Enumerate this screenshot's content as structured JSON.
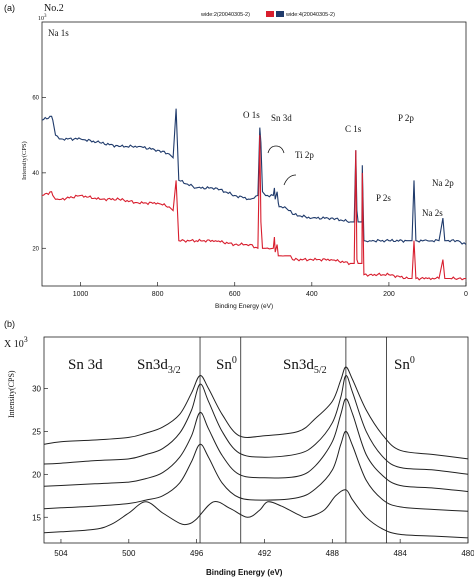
{
  "chart_data": [
    {
      "type": "line",
      "panel_label": "(a)",
      "sample": "No.2",
      "y_multiplier": "10",
      "y_multiplier_exp": "3",
      "legend": [
        {
          "name": "wide:2(20040305-2)",
          "color": "#d81e2e"
        },
        {
          "name": "wide:4(20040305-2)",
          "color": "#1f3a6b"
        }
      ],
      "xlabel": "Binding Energy (eV)",
      "ylabel": "Intensity(CPS)",
      "xlim": [
        1100,
        0
      ],
      "ylim": [
        10,
        80
      ],
      "xticks": [
        1000,
        800,
        600,
        400,
        200,
        0
      ],
      "yticks": [
        20,
        40,
        60
      ],
      "series": [
        {
          "color": "#1f3a6b",
          "x": [
            1100,
            1075,
            1072,
            1065,
            1050,
            1000,
            950,
            900,
            850,
            800,
            770,
            760,
            752,
            745,
            700,
            650,
            600,
            560,
            540,
            535,
            532,
            528,
            520,
            500,
            497,
            495,
            490,
            487,
            485,
            470,
            460,
            455,
            450,
            400,
            350,
            300,
            290,
            286,
            283,
            280,
            270,
            269,
            265,
            250,
            200,
            150,
            140,
            135,
            130,
            100,
            70,
            60,
            55,
            50,
            20,
            0
          ],
          "y": [
            54,
            55,
            54,
            50,
            49,
            49,
            48,
            47,
            47,
            46,
            45,
            44,
            57,
            38,
            36,
            36,
            34,
            33,
            34,
            52,
            48,
            35,
            34,
            34,
            36,
            33,
            35,
            32,
            31,
            31,
            30,
            30,
            29,
            28,
            28,
            27,
            27,
            46,
            30,
            27,
            27,
            42,
            22,
            22,
            22,
            22,
            22,
            38,
            22,
            22,
            22,
            28,
            22,
            22,
            22,
            21
          ]
        },
        {
          "color": "#d81e2e",
          "x": [
            1100,
            1075,
            1072,
            1065,
            1050,
            1000,
            950,
            900,
            850,
            800,
            770,
            760,
            752,
            745,
            700,
            650,
            600,
            560,
            540,
            535,
            532,
            528,
            520,
            500,
            497,
            495,
            490,
            487,
            485,
            470,
            460,
            455,
            450,
            400,
            350,
            300,
            290,
            286,
            283,
            280,
            270,
            269,
            265,
            250,
            200,
            150,
            140,
            135,
            130,
            100,
            70,
            60,
            55,
            50,
            20,
            0
          ],
          "y": [
            34,
            35,
            34,
            33,
            33,
            34,
            33,
            33,
            32,
            32,
            31,
            30,
            38,
            22,
            22,
            22,
            21,
            21,
            20,
            50,
            27,
            20,
            20,
            20,
            23,
            19,
            21,
            18,
            18,
            18,
            18,
            18,
            17,
            17,
            17,
            16,
            16,
            46,
            17,
            16,
            16,
            40,
            13,
            13,
            13,
            12,
            12,
            22,
            12,
            12,
            12,
            17,
            12,
            12,
            12,
            12
          ]
        }
      ],
      "annotations": [
        "Na 1s",
        "O 1s",
        "Sn 3d",
        "Ti 2p",
        "C 1s",
        "P 2p",
        "P 2s",
        "Na 2p",
        "Na 2s"
      ]
    },
    {
      "type": "line",
      "panel_label": "(b)",
      "y_multiplier": "X 10",
      "y_multiplier_exp": "3",
      "xlabel": "Binding Energy (eV)",
      "ylabel": "Intensity(CPS)",
      "xlim": [
        505,
        480
      ],
      "ylim": [
        12,
        36
      ],
      "xticks": [
        504,
        500,
        496,
        492,
        488,
        484,
        480
      ],
      "yticks": [
        15,
        20,
        25,
        30
      ],
      "reference_lines": [
        495.8,
        493.4,
        487.2,
        484.8
      ],
      "annotations": [
        "Sn 3d",
        "Sn3d",
        "3/2",
        "Sn",
        "0",
        "Sn3d",
        "5/2",
        "Sn",
        "0"
      ],
      "series": [
        {
          "x": [
            505,
            504,
            502,
            500,
            499,
            498,
            497,
            496.3,
            495.8,
            495.3,
            494.5,
            493.5,
            492,
            490,
            489,
            488,
            487.5,
            487.2,
            486.8,
            486,
            485,
            484,
            482,
            480
          ],
          "y": [
            23.5,
            23.8,
            24,
            24.3,
            24.8,
            25.5,
            27,
            29.5,
            31.5,
            30,
            27,
            24.5,
            24.5,
            25,
            26.5,
            28.5,
            31,
            32.5,
            31,
            27.5,
            24.5,
            22.8,
            22.3,
            21.8
          ]
        },
        {
          "x": [
            505,
            504,
            502,
            500,
            499,
            498,
            497,
            496.3,
            495.8,
            495.3,
            494.5,
            493.5,
            492,
            490,
            489,
            488,
            487.5,
            487.2,
            486.8,
            486,
            485,
            484,
            482,
            480
          ],
          "y": [
            21.2,
            21.3,
            21.6,
            21.8,
            22.3,
            23,
            24.8,
            27.5,
            30.5,
            28.5,
            25,
            22.5,
            22,
            22.4,
            23.5,
            26,
            29,
            31.5,
            29.5,
            25,
            22,
            20.8,
            20.5,
            20
          ],
          "peak_shift": 0.4
        },
        {
          "x": [
            505,
            504,
            502,
            500,
            499,
            498,
            497,
            496.3,
            495.8,
            495.3,
            494.5,
            493.5,
            492,
            490,
            489,
            488,
            487.5,
            487.2,
            486.8,
            486,
            485,
            484,
            482,
            480
          ],
          "y": [
            18.6,
            18.7,
            18.9,
            19.1,
            19.5,
            20.2,
            22,
            24.5,
            27.2,
            25.3,
            22.2,
            20,
            19.6,
            19.8,
            21,
            23.8,
            27,
            28.8,
            27,
            22.3,
            19.8,
            18.7,
            18.4,
            18
          ],
          "peak_shift": 0.5
        },
        {
          "x": [
            505,
            504,
            502,
            500,
            499,
            498,
            497,
            496.3,
            495.8,
            495.3,
            494.5,
            493.5,
            492,
            490,
            489,
            488,
            487.5,
            487.2,
            486.8,
            486,
            485,
            484,
            482,
            480
          ],
          "y": [
            16,
            16.1,
            16.3,
            16.6,
            17,
            17.5,
            19,
            21.5,
            23.5,
            22,
            19,
            17.3,
            17,
            17.3,
            18.3,
            20.5,
            23.5,
            25,
            23.3,
            19.3,
            17,
            16.2,
            15.9,
            15.7
          ],
          "peak_shift": 0.6
        },
        {
          "x": [
            505,
            504,
            502,
            501,
            500,
            499,
            498,
            497,
            496.5,
            496,
            495,
            494,
            493,
            492.3,
            491.8,
            491,
            490,
            489.5,
            488.5,
            487.8,
            487.2,
            486.8,
            486,
            485,
            484,
            482,
            480
          ],
          "y": [
            13.2,
            13.3,
            13.6,
            14.2,
            15.5,
            16.8,
            15.5,
            14.3,
            14.2,
            14.8,
            16.8,
            16,
            15,
            15.8,
            16.8,
            16.3,
            15.3,
            15,
            15.8,
            17.5,
            18.2,
            17,
            15,
            13.6,
            13,
            12.8,
            12.6
          ],
          "peak_shift": 0
        }
      ]
    }
  ]
}
